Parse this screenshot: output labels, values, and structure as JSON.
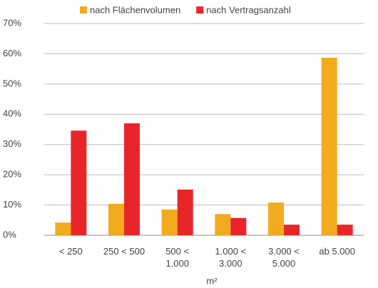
{
  "chart_data": {
    "type": "bar",
    "x_label": "m²",
    "categories": [
      "< 250",
      "250 < 500",
      "500 <\n1.000",
      "1.000 <\n3.000",
      "3.000 <\n5.000",
      "ab 5.000"
    ],
    "series": [
      {
        "name": "nach Flächenvolumen",
        "color": "#f2ab1f",
        "values": [
          4.2,
          10.4,
          8.5,
          7.0,
          10.8,
          58.7
        ]
      },
      {
        "name": "nach Vertragsanzahl",
        "color": "#e8262a",
        "values": [
          34.6,
          37.0,
          15.1,
          5.7,
          3.5,
          3.5
        ]
      }
    ],
    "ylim": [
      0,
      70
    ],
    "yticks": [
      {
        "value": 0,
        "label": "0%"
      },
      {
        "value": 10,
        "label": "10%"
      },
      {
        "value": 20,
        "label": "20%"
      },
      {
        "value": 30,
        "label": "30%"
      },
      {
        "value": 40,
        "label": "40%"
      },
      {
        "value": 50,
        "label": "50%"
      },
      {
        "value": 60,
        "label": "60%"
      },
      {
        "value": 70,
        "label": "70%"
      }
    ],
    "grid": true,
    "legend": "top"
  }
}
